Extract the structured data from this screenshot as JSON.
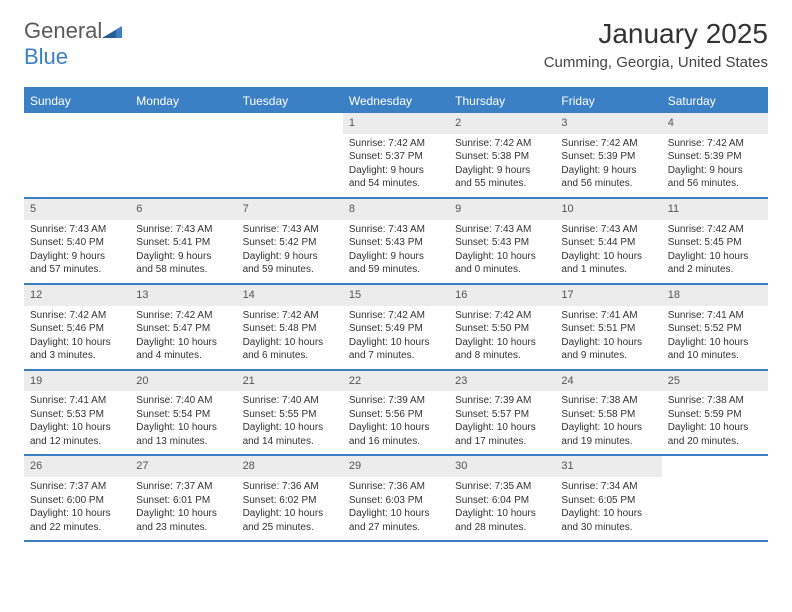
{
  "logo": {
    "text1": "General",
    "text2": "Blue"
  },
  "title": "January 2025",
  "location": "Cumming, Georgia, United States",
  "colors": {
    "header_bg": "#3b7fc4",
    "header_text": "#ffffff",
    "num_bg": "#ececec",
    "border": "#3b7fc4",
    "text": "#333333"
  },
  "dayNames": [
    "Sunday",
    "Monday",
    "Tuesday",
    "Wednesday",
    "Thursday",
    "Friday",
    "Saturday"
  ],
  "weeks": [
    [
      {
        "blank": true
      },
      {
        "blank": true
      },
      {
        "blank": true
      },
      {
        "n": "1",
        "sr": "7:42 AM",
        "ss": "5:37 PM",
        "dh": "9",
        "dm": "54"
      },
      {
        "n": "2",
        "sr": "7:42 AM",
        "ss": "5:38 PM",
        "dh": "9",
        "dm": "55"
      },
      {
        "n": "3",
        "sr": "7:42 AM",
        "ss": "5:39 PM",
        "dh": "9",
        "dm": "56"
      },
      {
        "n": "4",
        "sr": "7:42 AM",
        "ss": "5:39 PM",
        "dh": "9",
        "dm": "56"
      }
    ],
    [
      {
        "n": "5",
        "sr": "7:43 AM",
        "ss": "5:40 PM",
        "dh": "9",
        "dm": "57"
      },
      {
        "n": "6",
        "sr": "7:43 AM",
        "ss": "5:41 PM",
        "dh": "9",
        "dm": "58"
      },
      {
        "n": "7",
        "sr": "7:43 AM",
        "ss": "5:42 PM",
        "dh": "9",
        "dm": "59"
      },
      {
        "n": "8",
        "sr": "7:43 AM",
        "ss": "5:43 PM",
        "dh": "9",
        "dm": "59"
      },
      {
        "n": "9",
        "sr": "7:43 AM",
        "ss": "5:43 PM",
        "dh": "10",
        "dm": "0"
      },
      {
        "n": "10",
        "sr": "7:43 AM",
        "ss": "5:44 PM",
        "dh": "10",
        "dm": "1"
      },
      {
        "n": "11",
        "sr": "7:42 AM",
        "ss": "5:45 PM",
        "dh": "10",
        "dm": "2"
      }
    ],
    [
      {
        "n": "12",
        "sr": "7:42 AM",
        "ss": "5:46 PM",
        "dh": "10",
        "dm": "3"
      },
      {
        "n": "13",
        "sr": "7:42 AM",
        "ss": "5:47 PM",
        "dh": "10",
        "dm": "4"
      },
      {
        "n": "14",
        "sr": "7:42 AM",
        "ss": "5:48 PM",
        "dh": "10",
        "dm": "6"
      },
      {
        "n": "15",
        "sr": "7:42 AM",
        "ss": "5:49 PM",
        "dh": "10",
        "dm": "7"
      },
      {
        "n": "16",
        "sr": "7:42 AM",
        "ss": "5:50 PM",
        "dh": "10",
        "dm": "8"
      },
      {
        "n": "17",
        "sr": "7:41 AM",
        "ss": "5:51 PM",
        "dh": "10",
        "dm": "9"
      },
      {
        "n": "18",
        "sr": "7:41 AM",
        "ss": "5:52 PM",
        "dh": "10",
        "dm": "10"
      }
    ],
    [
      {
        "n": "19",
        "sr": "7:41 AM",
        "ss": "5:53 PM",
        "dh": "10",
        "dm": "12"
      },
      {
        "n": "20",
        "sr": "7:40 AM",
        "ss": "5:54 PM",
        "dh": "10",
        "dm": "13"
      },
      {
        "n": "21",
        "sr": "7:40 AM",
        "ss": "5:55 PM",
        "dh": "10",
        "dm": "14"
      },
      {
        "n": "22",
        "sr": "7:39 AM",
        "ss": "5:56 PM",
        "dh": "10",
        "dm": "16"
      },
      {
        "n": "23",
        "sr": "7:39 AM",
        "ss": "5:57 PM",
        "dh": "10",
        "dm": "17"
      },
      {
        "n": "24",
        "sr": "7:38 AM",
        "ss": "5:58 PM",
        "dh": "10",
        "dm": "19"
      },
      {
        "n": "25",
        "sr": "7:38 AM",
        "ss": "5:59 PM",
        "dh": "10",
        "dm": "20"
      }
    ],
    [
      {
        "n": "26",
        "sr": "7:37 AM",
        "ss": "6:00 PM",
        "dh": "10",
        "dm": "22"
      },
      {
        "n": "27",
        "sr": "7:37 AM",
        "ss": "6:01 PM",
        "dh": "10",
        "dm": "23"
      },
      {
        "n": "28",
        "sr": "7:36 AM",
        "ss": "6:02 PM",
        "dh": "10",
        "dm": "25"
      },
      {
        "n": "29",
        "sr": "7:36 AM",
        "ss": "6:03 PM",
        "dh": "10",
        "dm": "27"
      },
      {
        "n": "30",
        "sr": "7:35 AM",
        "ss": "6:04 PM",
        "dh": "10",
        "dm": "28"
      },
      {
        "n": "31",
        "sr": "7:34 AM",
        "ss": "6:05 PM",
        "dh": "10",
        "dm": "30"
      },
      {
        "blank": true
      }
    ]
  ]
}
